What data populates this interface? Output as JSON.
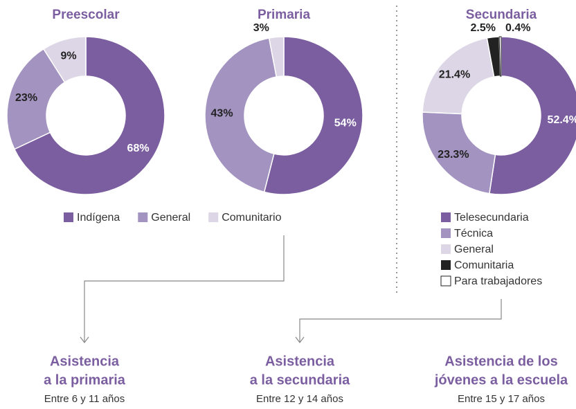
{
  "chart_data": [
    {
      "type": "pie",
      "donut": true,
      "title": "Preescolar",
      "categories": [
        "Indígena",
        "General",
        "Comunitario"
      ],
      "values": [
        68,
        23,
        9
      ],
      "value_labels": [
        "68%",
        "23%",
        "9%"
      ],
      "colors": [
        "#7b5ea0",
        "#a393c0",
        "#dcd6e6"
      ],
      "legend": "bottom"
    },
    {
      "type": "pie",
      "donut": true,
      "title": "Primaria",
      "values": [
        54,
        43,
        3
      ],
      "value_labels": [
        "54%",
        "43%",
        "3%"
      ],
      "colors": [
        "#7b5ea0",
        "#a393c0",
        "#dcd6e6"
      ]
    },
    {
      "type": "pie",
      "donut": true,
      "title": "Secundaria",
      "categories": [
        "Telesecundaria",
        "Técnica",
        "General",
        "Comunitaria",
        "Para trabajadores"
      ],
      "values": [
        52.4,
        23.3,
        21.4,
        2.5,
        0.4
      ],
      "value_labels": [
        "52.4%",
        "23.3%",
        "21.4%",
        "2.5%",
        "0.4%"
      ],
      "colors": [
        "#7b5ea0",
        "#a393c0",
        "#dcd6e6",
        "#222222",
        "#ffffff"
      ],
      "legend": "bottom"
    }
  ],
  "sections": [
    {
      "title_lines": [
        "Asistencia",
        "a la primaria"
      ],
      "subtitle": "Entre 6 y 11 años"
    },
    {
      "title_lines": [
        "Asistencia",
        "a la secundaria"
      ],
      "subtitle": "Entre 12 y 14 años"
    },
    {
      "title_lines": [
        "Asistencia de los",
        "jóvenes a la escuela"
      ],
      "subtitle": "Entre 15 y 17 años"
    }
  ]
}
